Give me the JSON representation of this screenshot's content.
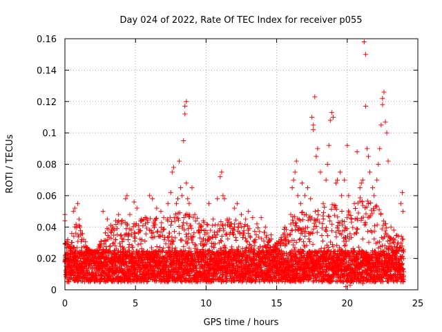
{
  "chart_data": {
    "type": "scatter",
    "title": "Day 024 of 2022, Rate Of TEC Index for receiver p055",
    "xlabel": "GPS time / hours",
    "ylabel": "ROTI / TECUs",
    "xlim": [
      0,
      25
    ],
    "ylim": [
      0,
      0.16
    ],
    "xticks": [
      0,
      5,
      10,
      15,
      20,
      25
    ],
    "yticks": [
      0,
      0.02,
      0.04,
      0.06,
      0.08,
      0.1,
      0.12,
      0.14,
      0.16
    ],
    "xtick_labels": [
      "0",
      "5",
      "10",
      "15",
      "20",
      "25"
    ],
    "ytick_labels": [
      "0",
      "0.02",
      "0.04",
      "0.06",
      "0.08",
      "0.1",
      "0.12",
      "0.14",
      "0.16"
    ],
    "grid": true,
    "marker": "+",
    "color": "#ff0000",
    "series": [
      {
        "points": [
          [
            0.0,
            0.044
          ],
          [
            0.0,
            0.048
          ],
          [
            0.2,
            0.032
          ],
          [
            0.4,
            0.028
          ],
          [
            0.6,
            0.05
          ],
          [
            0.7,
            0.052
          ],
          [
            0.9,
            0.055
          ],
          [
            1.0,
            0.045
          ],
          [
            1.2,
            0.032
          ],
          [
            1.5,
            0.024
          ],
          [
            2.0,
            0.022
          ],
          [
            2.5,
            0.028
          ],
          [
            2.7,
            0.05
          ],
          [
            3.0,
            0.045
          ],
          [
            3.3,
            0.038
          ],
          [
            3.6,
            0.044
          ],
          [
            3.8,
            0.048
          ],
          [
            4.0,
            0.042
          ],
          [
            4.3,
            0.058
          ],
          [
            4.4,
            0.06
          ],
          [
            4.6,
            0.048
          ],
          [
            4.9,
            0.056
          ],
          [
            5.1,
            0.052
          ],
          [
            5.4,
            0.045
          ],
          [
            5.7,
            0.042
          ],
          [
            6.0,
            0.06
          ],
          [
            6.2,
            0.058
          ],
          [
            6.5,
            0.052
          ],
          [
            6.8,
            0.05
          ],
          [
            7.0,
            0.046
          ],
          [
            7.3,
            0.055
          ],
          [
            7.5,
            0.062
          ],
          [
            7.6,
            0.075
          ],
          [
            7.7,
            0.078
          ],
          [
            7.9,
            0.055
          ],
          [
            8.0,
            0.058
          ],
          [
            8.1,
            0.082
          ],
          [
            8.2,
            0.065
          ],
          [
            8.3,
            0.06
          ],
          [
            8.4,
            0.095
          ],
          [
            8.5,
            0.112
          ],
          [
            8.5,
            0.117
          ],
          [
            8.6,
            0.12
          ],
          [
            8.6,
            0.068
          ],
          [
            8.7,
            0.058
          ],
          [
            8.8,
            0.055
          ],
          [
            9.0,
            0.065
          ],
          [
            9.2,
            0.048
          ],
          [
            9.5,
            0.042
          ],
          [
            9.8,
            0.044
          ],
          [
            10.2,
            0.055
          ],
          [
            10.5,
            0.045
          ],
          [
            10.8,
            0.058
          ],
          [
            11.0,
            0.072
          ],
          [
            11.1,
            0.075
          ],
          [
            11.2,
            0.06
          ],
          [
            11.3,
            0.058
          ],
          [
            11.5,
            0.045
          ],
          [
            11.8,
            0.042
          ],
          [
            12.0,
            0.052
          ],
          [
            12.2,
            0.055
          ],
          [
            12.5,
            0.048
          ],
          [
            12.8,
            0.045
          ],
          [
            13.0,
            0.05
          ],
          [
            13.3,
            0.046
          ],
          [
            13.6,
            0.042
          ],
          [
            13.9,
            0.046
          ],
          [
            14.2,
            0.04
          ],
          [
            14.6,
            0.035
          ],
          [
            15.0,
            0.03
          ],
          [
            15.3,
            0.032
          ],
          [
            15.6,
            0.028
          ],
          [
            15.9,
            0.035
          ],
          [
            16.0,
            0.048
          ],
          [
            16.1,
            0.065
          ],
          [
            16.2,
            0.07
          ],
          [
            16.3,
            0.075
          ],
          [
            16.4,
            0.082
          ],
          [
            16.5,
            0.06
          ],
          [
            16.7,
            0.055
          ],
          [
            16.8,
            0.068
          ],
          [
            17.0,
            0.06
          ],
          [
            17.2,
            0.065
          ],
          [
            17.4,
            0.058
          ],
          [
            17.5,
            0.11
          ],
          [
            17.6,
            0.105
          ],
          [
            17.6,
            0.102
          ],
          [
            17.7,
            0.123
          ],
          [
            17.8,
            0.085
          ],
          [
            17.9,
            0.09
          ],
          [
            18.1,
            0.075
          ],
          [
            18.3,
            0.055
          ],
          [
            18.5,
            0.07
          ],
          [
            18.6,
            0.08
          ],
          [
            18.7,
            0.092
          ],
          [
            18.8,
            0.108
          ],
          [
            18.9,
            0.113
          ],
          [
            19.0,
            0.11
          ],
          [
            19.2,
            0.068
          ],
          [
            19.3,
            0.07
          ],
          [
            19.5,
            0.075
          ],
          [
            19.6,
            0.06
          ],
          [
            19.8,
            0.07
          ],
          [
            20.0,
            0.092
          ],
          [
            20.1,
            0.06
          ],
          [
            20.3,
            0.045
          ],
          [
            20.5,
            0.055
          ],
          [
            20.7,
            0.088
          ],
          [
            20.9,
            0.065
          ],
          [
            21.0,
            0.068
          ],
          [
            21.1,
            0.07
          ],
          [
            21.2,
            0.158
          ],
          [
            21.3,
            0.15
          ],
          [
            21.3,
            0.117
          ],
          [
            21.4,
            0.09
          ],
          [
            21.5,
            0.085
          ],
          [
            21.6,
            0.075
          ],
          [
            21.8,
            0.065
          ],
          [
            21.9,
            0.06
          ],
          [
            22.1,
            0.07
          ],
          [
            22.2,
            0.08
          ],
          [
            22.3,
            0.09
          ],
          [
            22.4,
            0.105
          ],
          [
            22.5,
            0.118
          ],
          [
            22.5,
            0.122
          ],
          [
            22.6,
            0.126
          ],
          [
            22.7,
            0.107
          ],
          [
            22.8,
            0.1
          ],
          [
            22.9,
            0.082
          ],
          [
            23.1,
            0.04
          ],
          [
            23.3,
            0.038
          ],
          [
            23.6,
            0.03
          ],
          [
            23.8,
            0.055
          ],
          [
            23.9,
            0.062
          ],
          [
            23.95,
            0.05
          ],
          [
            20.0,
            0.005
          ],
          [
            19.9,
            0.002
          ],
          [
            20.2,
            0.003
          ],
          [
            21.1,
            0.004
          ],
          [
            21.4,
            0.006
          ]
        ]
      }
    ],
    "dense_band": {
      "x_range": [
        0,
        24
      ],
      "core_y_range": [
        0.005,
        0.025
      ],
      "envelope": [
        [
          0,
          0.03
        ],
        [
          1,
          0.045
        ],
        [
          1.5,
          0.03
        ],
        [
          2,
          0.02
        ],
        [
          2.5,
          0.03
        ],
        [
          3,
          0.04
        ],
        [
          4,
          0.045
        ],
        [
          5,
          0.042
        ],
        [
          6,
          0.048
        ],
        [
          7,
          0.045
        ],
        [
          8,
          0.05
        ],
        [
          9,
          0.048
        ],
        [
          10,
          0.042
        ],
        [
          11,
          0.045
        ],
        [
          12,
          0.045
        ],
        [
          13,
          0.042
        ],
        [
          14,
          0.04
        ],
        [
          15,
          0.028
        ],
        [
          16,
          0.05
        ],
        [
          17,
          0.05
        ],
        [
          18,
          0.052
        ],
        [
          19,
          0.055
        ],
        [
          20,
          0.05
        ],
        [
          21,
          0.06
        ],
        [
          22,
          0.06
        ],
        [
          23,
          0.035
        ],
        [
          24,
          0.035
        ]
      ]
    }
  }
}
